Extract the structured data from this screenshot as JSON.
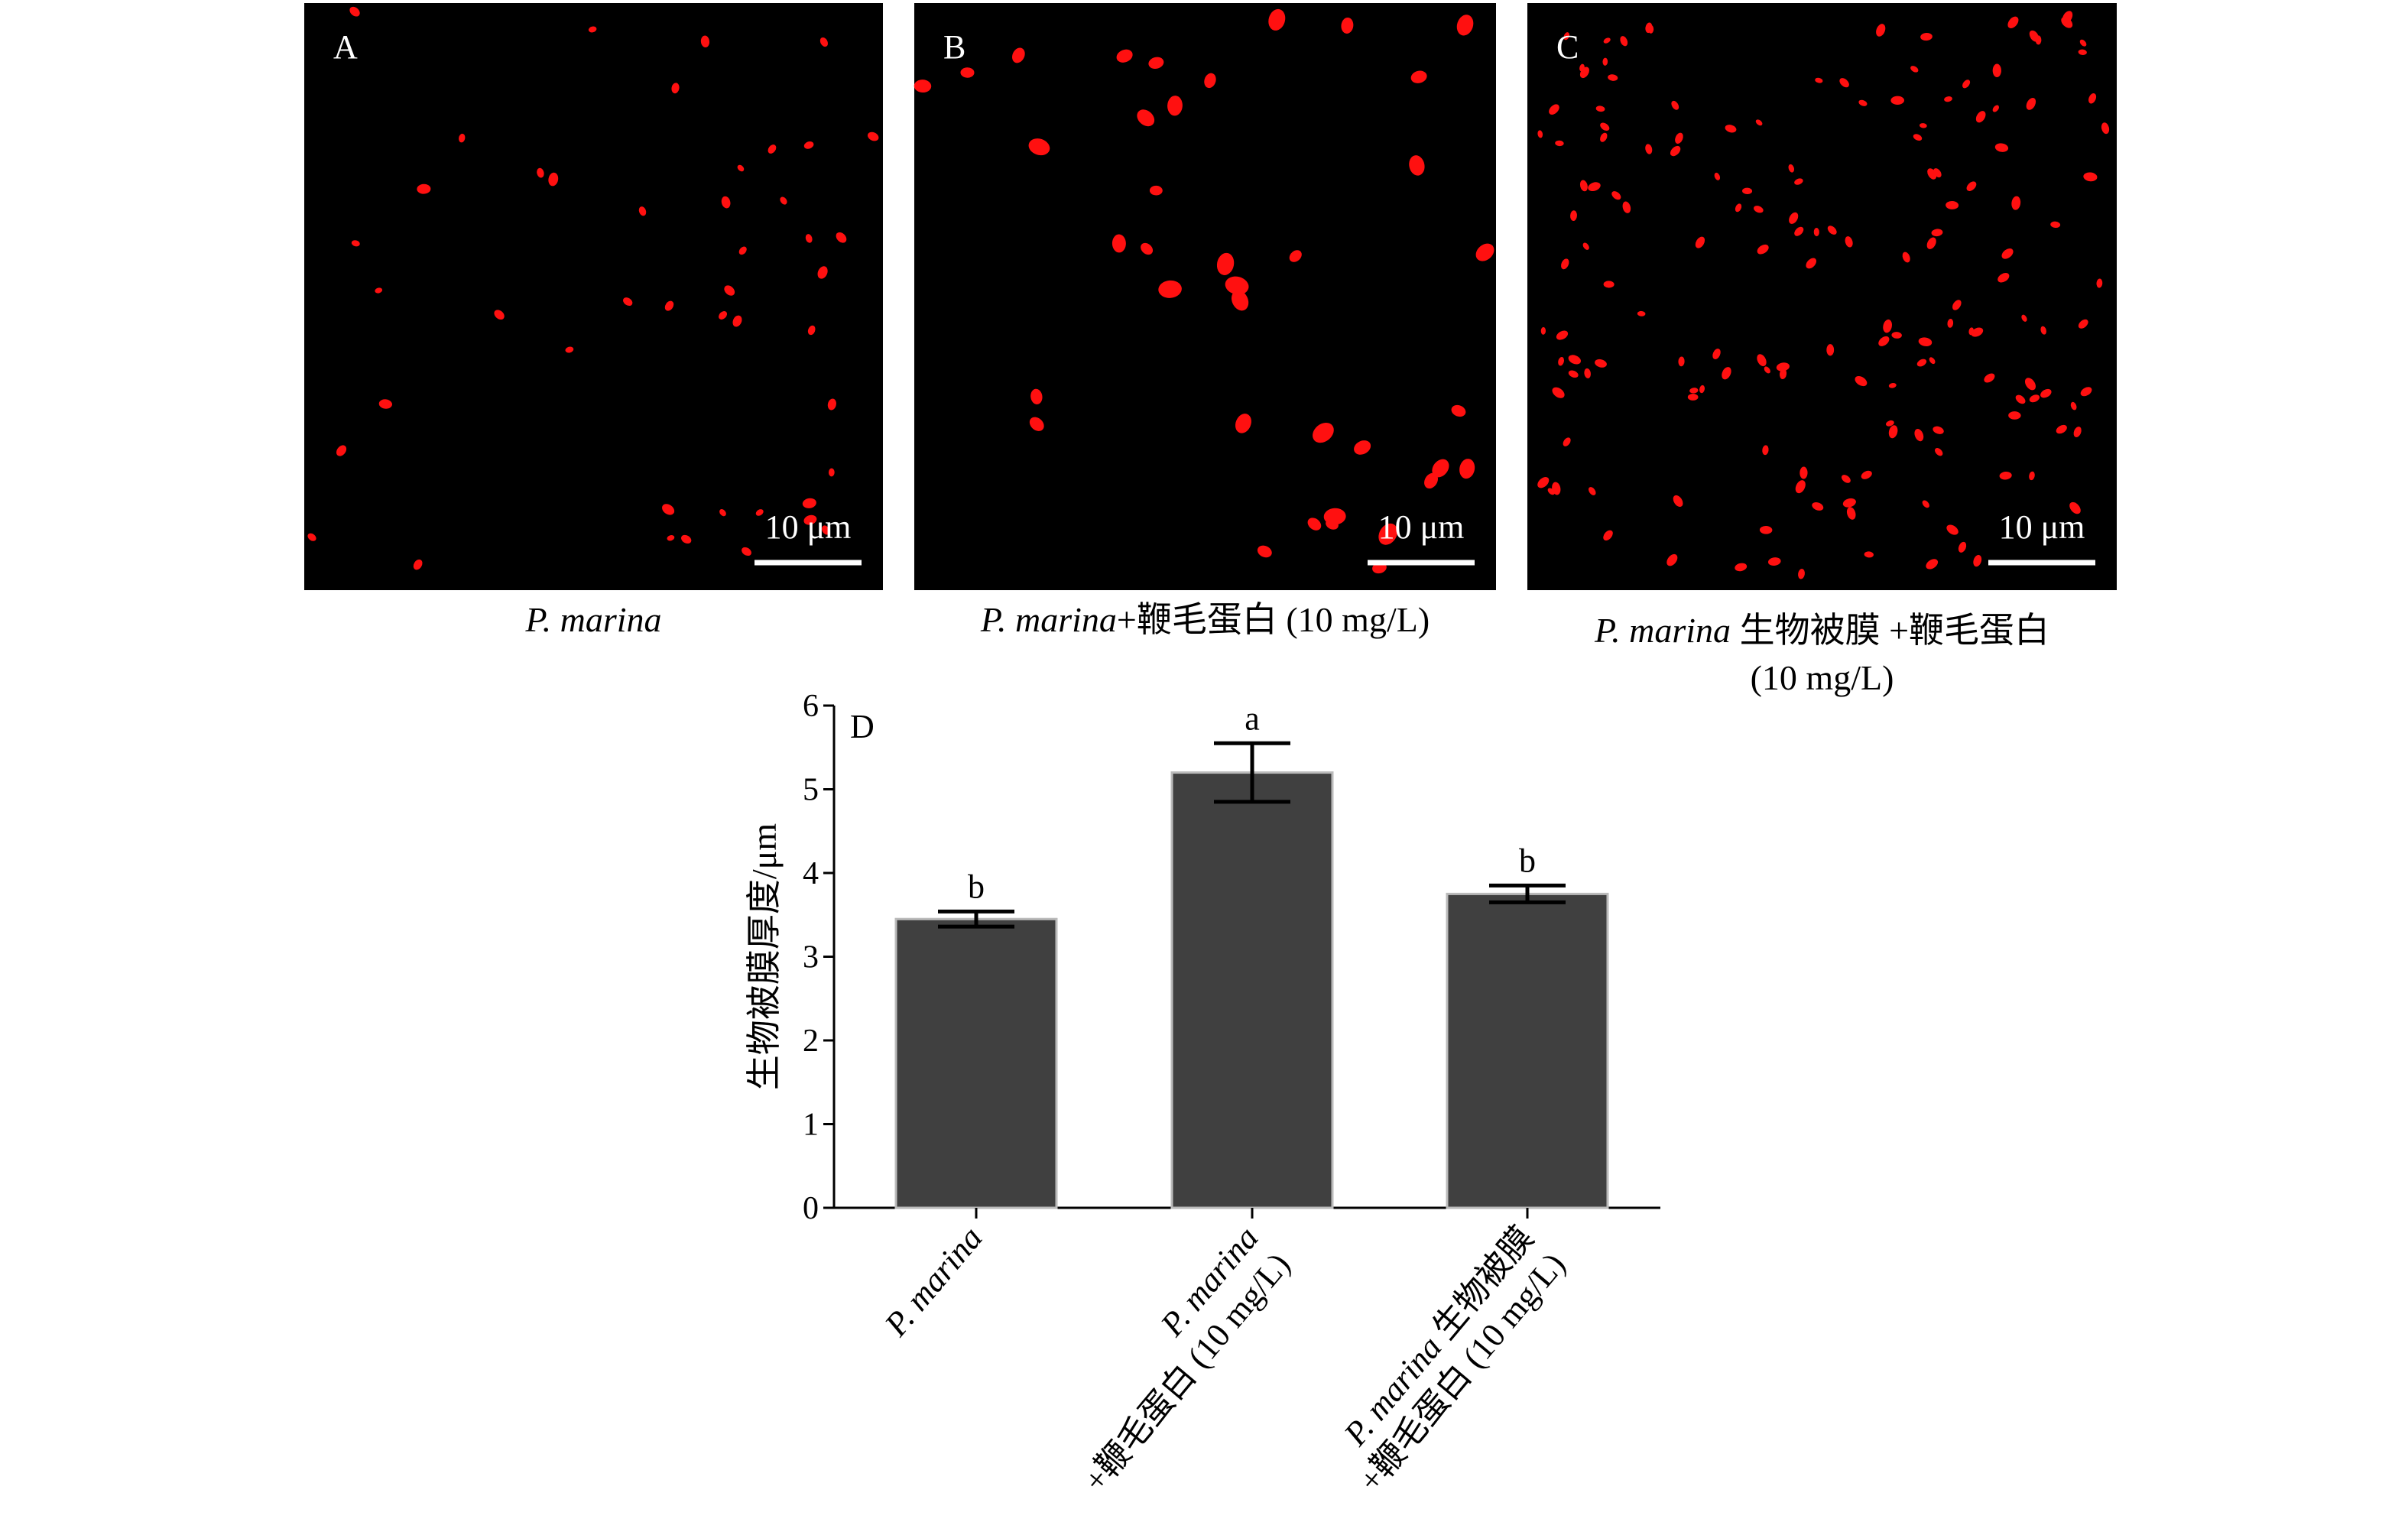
{
  "panels": [
    {
      "label": "A",
      "scale_bar": "10 μm",
      "caption": [
        [
          {
            "text": "P. marina",
            "italic": true
          }
        ]
      ]
    },
    {
      "label": "B",
      "scale_bar": "10 μm",
      "caption": [
        [
          {
            "text": "P. marina",
            "italic": true
          },
          {
            "text": "+鞭毛蛋白 (10 mg/L)"
          }
        ]
      ]
    },
    {
      "label": "C",
      "scale_bar": "10 μm",
      "caption": [
        [
          {
            "text": "P. marina",
            "italic": true
          },
          {
            "text": " 生物被膜 +鞭毛蛋白"
          }
        ],
        [
          {
            "text": "(10 mg/L)"
          }
        ]
      ]
    }
  ],
  "chart_data": {
    "type": "bar",
    "panel_label": "D",
    "y_label": "生物被膜厚度/μm",
    "categories": [
      [
        [
          {
            "text": "P. marina",
            "italic": true
          }
        ]
      ],
      [
        [
          {
            "text": "P. marina",
            "italic": true
          }
        ],
        [
          {
            "text": "+鞭毛蛋白 (10 mg/L)"
          }
        ]
      ],
      [
        [
          {
            "text": "P. marina",
            "italic": true
          },
          {
            "text": " 生物被膜"
          }
        ],
        [
          {
            "text": "+鞭毛蛋白 (10 mg/L)"
          }
        ]
      ]
    ],
    "values": [
      3.45,
      5.2,
      3.75
    ],
    "errors": [
      0.09,
      0.35,
      0.1
    ],
    "letters": [
      "b",
      "a",
      "b"
    ],
    "color": "#404040",
    "ylim": [
      0,
      6
    ],
    "yticks": [
      0,
      1,
      2,
      3,
      4,
      5,
      6
    ]
  }
}
